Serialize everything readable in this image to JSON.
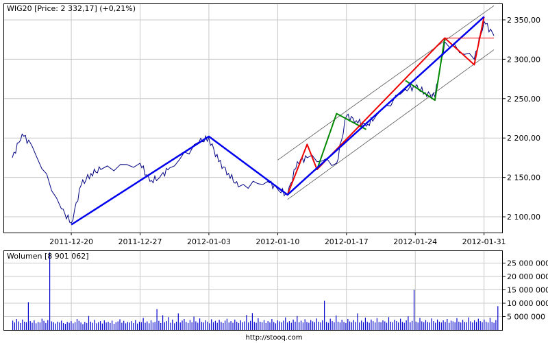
{
  "chart_data": [
    {
      "type": "line",
      "title": "WIG20 [Price: 2 332,17] (+0,21%)",
      "x_ticks": [
        "2011-12-20",
        "2011-12-27",
        "2012-01-03",
        "2012-01-10",
        "2012-01-17",
        "2012-01-24",
        "2012-01-31"
      ],
      "y_ticks": [
        "2 100,00",
        "2 150,00",
        "2 200,00",
        "2 250,00",
        "2 300,00",
        "2 350,00"
      ],
      "ylim": [
        2080,
        2370
      ],
      "xlim": [
        "2011-12-14",
        "2012-02-01"
      ],
      "grid": true,
      "series": [
        {
          "values": [
            [
              "2011-12-14",
              2175
            ],
            [
              "2011-12-15",
              2205
            ],
            [
              "2011-12-16",
              2190
            ],
            [
              "2011-12-19",
              2110
            ],
            [
              "2011-12-20",
              2092
            ],
            [
              "2011-12-21",
              2140
            ],
            [
              "2011-12-22",
              2155
            ],
            [
              "2011-12-23",
              2160
            ],
            [
              "2011-12-27",
              2168
            ],
            [
              "2011-12-28",
              2145
            ],
            [
              "2011-12-29",
              2150
            ],
            [
              "2011-12-30",
              2162
            ],
            [
              "2012-01-02",
              2195
            ],
            [
              "2012-01-03",
              2200
            ],
            [
              "2012-01-04",
              2170
            ],
            [
              "2012-01-05",
              2155
            ],
            [
              "2012-01-06",
              2138
            ],
            [
              "2012-01-09",
              2145
            ],
            [
              "2012-01-10",
              2135
            ],
            [
              "2012-01-11",
              2128
            ],
            [
              "2012-01-12",
              2170
            ],
            [
              "2012-01-13",
              2175
            ],
            [
              "2012-01-16",
              2168
            ],
            [
              "2012-01-17",
              2228
            ],
            [
              "2012-01-18",
              2222
            ],
            [
              "2012-01-19",
              2215
            ],
            [
              "2012-01-20",
              2228
            ],
            [
              "2012-01-23",
              2262
            ],
            [
              "2012-01-24",
              2265
            ],
            [
              "2012-01-25",
              2258
            ],
            [
              "2012-01-26",
              2252
            ],
            [
              "2012-01-27",
              2322
            ],
            [
              "2012-01-30",
              2300
            ],
            [
              "2012-01-31",
              2348
            ],
            [
              "2012-02-01",
              2330
            ]
          ]
        }
      ],
      "overlays": {
        "channel_lines": [
          {
            "from": [
              "2012-01-10",
              2172
            ],
            "to": [
              "2012-02-01",
              2368
            ]
          },
          {
            "from": [
              "2012-01-11",
              2122
            ],
            "to": [
              "2012-02-01",
              2312
            ]
          }
        ],
        "zigzag_major": [
          [
            "2011-12-20",
            2090
          ],
          [
            "2012-01-03",
            2202
          ],
          [
            "2012-01-11",
            2128
          ],
          [
            "2012-01-31",
            2354
          ]
        ],
        "zigzag_red": [
          [
            [
              "2012-01-11",
              2128
            ],
            [
              "2012-01-13",
              2192
            ],
            [
              "2012-01-14",
              2160
            ],
            [
              "2012-01-27",
              2327
            ],
            [
              "2012-01-30",
              2293
            ],
            [
              "2012-01-31",
              2354
            ]
          ]
        ],
        "zigzag_green": [
          [
            [
              "2012-01-14",
              2160
            ],
            [
              "2012-01-16",
              2231
            ],
            [
              "2012-01-19",
              2211
            ]
          ],
          [
            [
              "2012-01-23",
              2273
            ],
            [
              "2012-01-26",
              2248
            ],
            [
              "2012-01-27",
              2327
            ]
          ]
        ],
        "level_line": {
          "from": "2012-01-27",
          "to": "2012-02-01",
          "y": 2327
        }
      },
      "colors": {
        "major": "#0000ee",
        "red": "#ee0000",
        "green": "#008800",
        "price": "#000080",
        "channel": "#555555",
        "grid": "#c8c8c8"
      }
    },
    {
      "type": "bar",
      "title": "Wolumen [8 901 062]",
      "y_ticks": [
        "5 000 000",
        "10 000 000",
        "15 000 000",
        "20 000 000",
        "25 000 000"
      ],
      "ylim": [
        0,
        29500000
      ],
      "values": [
        3500000,
        2800000,
        4100000,
        3200000,
        2600000,
        3900000,
        3100000,
        2900000,
        10400000,
        3300000,
        2700000,
        3600000,
        2500000,
        3000000,
        2800000,
        4200000,
        3400000,
        2600000,
        3700000,
        29000000,
        3200000,
        2900000,
        2400000,
        3100000,
        2800000,
        3500000,
        2600000,
        2300000,
        3000000,
        2700000,
        3300000,
        2500000,
        2900000,
        4100000,
        3400000,
        2800000,
        2200000,
        3000000,
        2600000,
        5200000,
        3100000,
        2700000,
        3800000,
        2500000,
        2900000,
        3300000,
        2400000,
        3600000,
        2800000,
        3100000,
        2600000,
        3500000,
        2300000,
        2900000,
        3200000,
        4000000,
        2700000,
        3400000,
        2500000,
        3000000,
        2800000,
        3300000,
        2600000,
        3700000,
        2400000,
        3100000,
        2900000,
        4500000,
        2700000,
        3200000,
        2500000,
        3600000,
        2800000,
        3000000,
        7800000,
        3400000,
        2600000,
        5500000,
        2900000,
        3300000,
        4800000,
        2700000,
        3900000,
        2500000,
        3100000,
        6200000,
        2800000,
        3500000,
        4100000,
        3000000,
        2600000,
        3700000,
        2900000,
        5000000,
        3200000,
        2700000,
        4300000,
        3000000,
        2800000,
        3600000,
        3100000,
        2500000,
        4000000,
        2900000,
        3400000,
        2700000,
        3800000,
        3000000,
        2600000,
        3500000,
        4200000,
        2800000,
        3300000,
        2700000,
        3900000,
        3100000,
        2600000,
        3600000,
        2900000,
        3200000,
        5600000,
        2800000,
        3400000,
        6300000,
        3000000,
        2700000,
        4400000,
        3100000,
        2900000,
        3700000,
        2600000,
        3300000,
        2800000,
        4100000,
        3000000,
        2500000,
        3600000,
        3200000,
        2900000,
        3500000,
        4700000,
        2800000,
        3300000,
        2700000,
        3900000,
        3100000,
        5200000,
        2900000,
        3500000,
        2800000,
        4000000,
        3000000,
        2700000,
        3700000,
        3200000,
        2900000,
        4300000,
        3100000,
        2800000,
        3600000,
        10900000,
        3000000,
        2700000,
        4200000,
        3300000,
        2900000,
        5400000,
        3100000,
        2800000,
        3800000,
        3000000,
        2600000,
        4100000,
        3200000,
        2900000,
        3700000,
        3000000,
        6200000,
        2800000,
        3500000,
        2900000,
        4600000,
        3100000,
        2700000,
        3900000,
        3300000,
        2800000,
        4400000,
        3000000,
        2900000,
        3600000,
        3200000,
        2700000,
        4800000,
        3100000,
        2900000,
        3800000,
        3300000,
        2800000,
        4200000,
        3000000,
        2700000,
        3600000,
        5100000,
        2900000,
        3400000,
        15000000,
        3100000,
        2800000,
        4500000,
        3200000,
        2900000,
        3700000,
        3000000,
        2800000,
        4300000,
        3300000,
        2700000,
        3900000,
        3100000,
        2800000,
        3600000,
        3000000,
        4100000,
        2700000,
        3500000,
        3200000,
        2900000,
        4400000,
        3100000,
        2800000,
        3800000,
        3000000,
        2900000,
        4700000,
        3200000,
        2800000,
        3600000,
        3000000,
        4200000,
        3300000,
        2900000,
        3900000,
        3100000,
        2800000,
        4500000,
        3000000,
        2700000,
        3700000,
        8900000
      ]
    }
  ],
  "footer": {
    "source": "http://stooq.com"
  }
}
